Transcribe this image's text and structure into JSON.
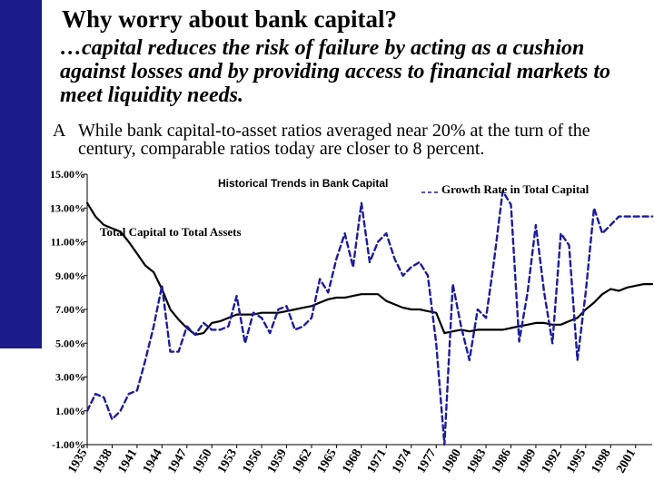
{
  "slide": {
    "title": "Why worry about bank capital?",
    "subtitle": "…capital reduces the risk of failure by acting as a cushion against losses and by providing access to financial markets to meet liquidity needs.",
    "bullet_marker": "A",
    "bullet": "While bank capital-to-asset ratios averaged near 20% at the turn of the century, comparable ratios today are closer to 8 percent."
  },
  "colors": {
    "accent_bar": "#1b1b8a",
    "series_line": "#000000",
    "series_dashed": "#1c1c9c"
  },
  "chart_data": {
    "type": "line",
    "title": "Historical Trends in Bank Capital",
    "xlabel": "",
    "ylabel": "",
    "xlim": [
      1935,
      2003
    ],
    "ylim": [
      -1,
      15
    ],
    "y_ticks": [
      "15.00%",
      "13.00%",
      "11.00%",
      "9.00%",
      "7.00%",
      "5.00%",
      "3.00%",
      "1.00%",
      "-1.00%"
    ],
    "y_tick_values": [
      15,
      13,
      11,
      9,
      7,
      5,
      3,
      1,
      -1
    ],
    "x_ticks": [
      "1935",
      "1938",
      "1941",
      "1944",
      "1947",
      "1950",
      "1953",
      "1956",
      "1959",
      "1962",
      "1965",
      "1968",
      "1971",
      "1974",
      "1977",
      "1980",
      "1983",
      "1986",
      "1989",
      "1992",
      "1995",
      "1998",
      "2001"
    ],
    "x_tick_values": [
      1935,
      1938,
      1941,
      1944,
      1947,
      1950,
      1953,
      1956,
      1959,
      1962,
      1965,
      1968,
      1971,
      1974,
      1977,
      1980,
      1983,
      1986,
      1989,
      1992,
      1995,
      1998,
      2001
    ],
    "series": [
      {
        "name": "Total Capital to Total Assets",
        "style": "solid",
        "x": [
          1935,
          1936,
          1937,
          1938,
          1939,
          1940,
          1941,
          1942,
          1943,
          1944,
          1945,
          1946,
          1947,
          1948,
          1949,
          1950,
          1951,
          1952,
          1953,
          1954,
          1955,
          1956,
          1957,
          1958,
          1959,
          1960,
          1961,
          1962,
          1963,
          1964,
          1965,
          1966,
          1967,
          1968,
          1969,
          1970,
          1971,
          1972,
          1973,
          1974,
          1975,
          1976,
          1977,
          1978,
          1979,
          1980,
          1981,
          1982,
          1983,
          1984,
          1985,
          1986,
          1987,
          1988,
          1989,
          1990,
          1991,
          1992,
          1993,
          1994,
          1995,
          1996,
          1997,
          1998,
          1999,
          2000,
          2001,
          2002,
          2003
        ],
        "values": [
          13.3,
          12.5,
          12.0,
          11.8,
          11.6,
          11.0,
          10.3,
          9.6,
          9.2,
          8.2,
          7.0,
          6.4,
          5.9,
          5.5,
          5.6,
          6.2,
          6.3,
          6.5,
          6.7,
          6.7,
          6.7,
          6.8,
          6.8,
          6.8,
          6.9,
          7.0,
          7.1,
          7.2,
          7.4,
          7.6,
          7.7,
          7.7,
          7.8,
          7.9,
          7.9,
          7.9,
          7.5,
          7.3,
          7.1,
          7.0,
          7.0,
          6.9,
          6.8,
          5.6,
          5.7,
          5.8,
          5.7,
          5.8,
          5.8,
          5.8,
          5.8,
          5.9,
          6.0,
          6.1,
          6.2,
          6.2,
          6.1,
          6.1,
          6.3,
          6.5,
          7.0,
          7.4,
          7.9,
          8.2,
          8.1,
          8.3,
          8.4,
          8.5,
          8.5
        ]
      },
      {
        "name": "Growth Rate in Total Capital",
        "style": "dashed",
        "x": [
          1935,
          1936,
          1937,
          1938,
          1939,
          1940,
          1941,
          1942,
          1943,
          1944,
          1945,
          1946,
          1947,
          1948,
          1949,
          1950,
          1951,
          1952,
          1953,
          1954,
          1955,
          1956,
          1957,
          1958,
          1959,
          1960,
          1961,
          1962,
          1963,
          1964,
          1965,
          1966,
          1967,
          1968,
          1969,
          1970,
          1971,
          1972,
          1973,
          1974,
          1975,
          1976,
          1977,
          1978,
          1979,
          1980,
          1981,
          1982,
          1983,
          1984,
          1985,
          1986,
          1987,
          1988,
          1989,
          1990,
          1991,
          1992,
          1993,
          1994,
          1995,
          1996,
          1997,
          1998,
          1999,
          2000,
          2001,
          2002,
          2003
        ],
        "values": [
          1.0,
          2.0,
          1.8,
          0.5,
          1.0,
          2.0,
          2.2,
          4.0,
          6.0,
          8.4,
          4.5,
          4.5,
          6.0,
          5.5,
          6.2,
          5.8,
          5.8,
          6.0,
          7.8,
          5.0,
          6.8,
          6.5,
          5.6,
          7.0,
          7.2,
          5.8,
          6.0,
          6.5,
          8.8,
          8.0,
          10.0,
          11.5,
          9.5,
          13.3,
          9.8,
          11.0,
          11.5,
          10.0,
          9.0,
          9.5,
          9.8,
          9.0,
          5.0,
          -1.0,
          8.5,
          6.0,
          4.0,
          7.0,
          6.5,
          10.0,
          14.0,
          13.2,
          5.1,
          8.0,
          12.0,
          8.0,
          5.0,
          11.5,
          10.8,
          4.0,
          8.0,
          13.0,
          11.5,
          12.0,
          12.5,
          12.5,
          12.5,
          12.5,
          12.5
        ]
      }
    ],
    "annotations": [
      "Total Capital to Total Assets",
      "Growth Rate in Total Capital"
    ],
    "grid": false,
    "legend": "none"
  }
}
